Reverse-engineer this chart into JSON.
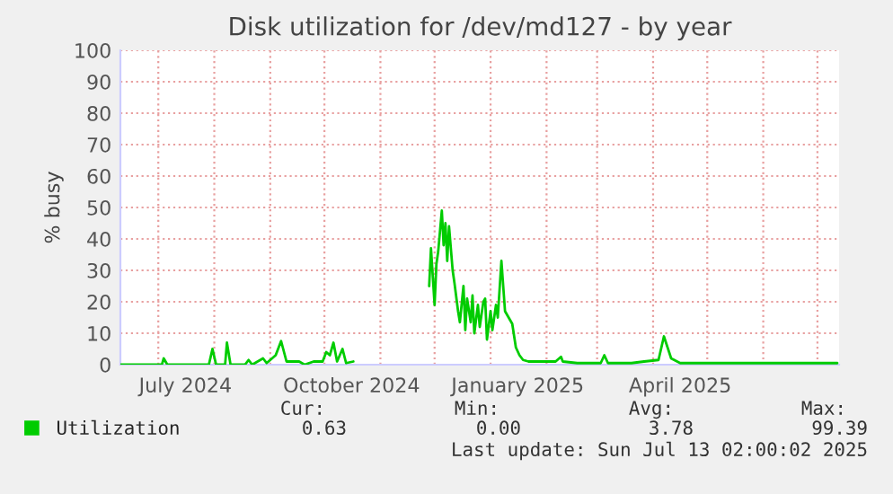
{
  "chart_data": {
    "type": "line",
    "title": "Disk utilization for /dev/md127 - by year",
    "ylabel": "% busy",
    "x": [
      "2024-06-10",
      "2024-07-03",
      "2024-07-04",
      "2024-07-06",
      "2024-07-29",
      "2024-07-31",
      "2024-08-02",
      "2024-08-07",
      "2024-08-08",
      "2024-08-10",
      "2024-08-18",
      "2024-08-20",
      "2024-08-22",
      "2024-08-28",
      "2024-08-30",
      "2024-09-04",
      "2024-09-07",
      "2024-09-10",
      "2024-09-17",
      "2024-09-20",
      "2024-09-25",
      "2024-09-30",
      "2024-10-02",
      "2024-10-04",
      "2024-10-06",
      "2024-10-08",
      "2024-10-11",
      "2024-10-13",
      "2024-10-17",
      "2024-10-30",
      "2024-11-28",
      "2024-11-29",
      "2024-12-01",
      "2024-12-02",
      "2024-12-03",
      "2024-12-05",
      "2024-12-06",
      "2024-12-07",
      "2024-12-08",
      "2024-12-09",
      "2024-12-11",
      "2024-12-12",
      "2024-12-14",
      "2024-12-15",
      "2024-12-17",
      "2024-12-18",
      "2024-12-19",
      "2024-12-21",
      "2024-12-22",
      "2024-12-23",
      "2024-12-25",
      "2024-12-26",
      "2024-12-28",
      "2024-12-29",
      "2024-12-30",
      "2025-01-01",
      "2025-01-02",
      "2025-01-04",
      "2025-01-05",
      "2025-01-07",
      "2025-01-09",
      "2025-01-11",
      "2025-01-13",
      "2025-01-15",
      "2025-01-17",
      "2025-01-19",
      "2025-01-22",
      "2025-01-29",
      "2025-02-06",
      "2025-02-09",
      "2025-02-10",
      "2025-02-18",
      "2025-02-25",
      "2025-03-03",
      "2025-03-05",
      "2025-03-07",
      "2025-03-20",
      "2025-03-27",
      "2025-04-04",
      "2025-04-07",
      "2025-04-11",
      "2025-04-16",
      "2025-05-09",
      "2025-05-29",
      "2025-06-08",
      "2025-07-05",
      "2025-07-12"
    ],
    "series": [
      {
        "name": "Utilization",
        "color": "#00cc00",
        "values": [
          0,
          0,
          2,
          0,
          0,
          5,
          0,
          0,
          7,
          0,
          0,
          1.5,
          0,
          2,
          0.5,
          3,
          7.5,
          1,
          1,
          0,
          1,
          1,
          4,
          3,
          7,
          1,
          5,
          0.5,
          1,
          null,
          25,
          37,
          19,
          32,
          36,
          49,
          38,
          45,
          33,
          44,
          30,
          26,
          17,
          13.5,
          25,
          11,
          21,
          13.5,
          22,
          10,
          19,
          12,
          20,
          21,
          8,
          17,
          11,
          19,
          15,
          33,
          17,
          15,
          13,
          5.5,
          3,
          1.5,
          1,
          1,
          1,
          2.5,
          1,
          0.5,
          0.5,
          0.5,
          3,
          0.5,
          0.5,
          1,
          1.5,
          9,
          2,
          0.5,
          0.5,
          0.5,
          0.5,
          0.5,
          0.5
        ]
      }
    ],
    "xlim": [
      "2024-06-10",
      "2025-07-13"
    ],
    "xticks": [
      {
        "value": "2024-07-01",
        "label": null
      },
      {
        "value": "2024-07-16",
        "label": "July 2024"
      },
      {
        "value": "2024-08-01",
        "label": null
      },
      {
        "value": "2024-09-01",
        "label": null
      },
      {
        "value": "2024-10-01",
        "label": null
      },
      {
        "value": "2024-10-16",
        "label": "October 2024"
      },
      {
        "value": "2024-11-01",
        "label": null
      },
      {
        "value": "2024-12-01",
        "label": null
      },
      {
        "value": "2025-01-01",
        "label": null
      },
      {
        "value": "2025-01-16",
        "label": "January 2025"
      },
      {
        "value": "2025-02-01",
        "label": null
      },
      {
        "value": "2025-03-01",
        "label": null
      },
      {
        "value": "2025-04-01",
        "label": null
      },
      {
        "value": "2025-04-16",
        "label": "April 2025"
      },
      {
        "value": "2025-05-01",
        "label": null
      },
      {
        "value": "2025-06-01",
        "label": null
      },
      {
        "value": "2025-07-01",
        "label": null
      }
    ],
    "ylim": [
      0,
      100
    ],
    "yticks": [
      0,
      10,
      20,
      30,
      40,
      50,
      60,
      70,
      80,
      90,
      100
    ],
    "grid": true,
    "legend": "bottom left",
    "marker": "none",
    "line_style": "solid",
    "annotations": [
      "Cur:",
      "Min:",
      "Avg:",
      "Max:",
      "0.63",
      "0.00",
      "3.78",
      "99.39",
      "Last update: Sun Jul 13 02:00:02 2025"
    ]
  }
}
